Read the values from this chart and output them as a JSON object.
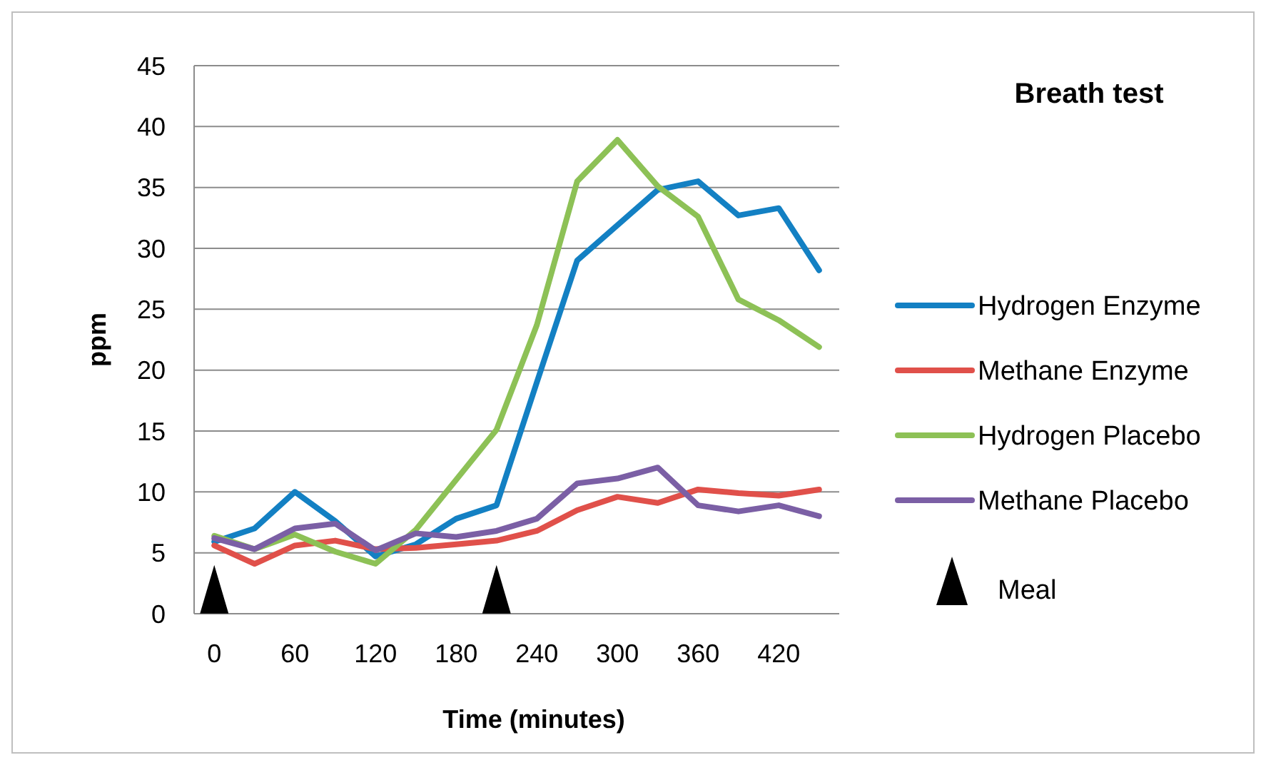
{
  "chart_data": {
    "type": "line",
    "title": "Breath test",
    "xlabel": "Time (minutes)",
    "ylabel": "ppm",
    "categories": [
      "0",
      null,
      "60",
      null,
      "120",
      null,
      "180",
      null,
      "240",
      null,
      "300",
      null,
      "360",
      null,
      "420",
      null
    ],
    "series": [
      {
        "name": "Hydrogen Enzyme",
        "color": "#1380c3",
        "values": [
          5.9,
          7.0,
          10.0,
          7.6,
          4.7,
          5.7,
          7.8,
          8.9,
          19,
          29.0,
          31.9,
          34.8,
          35.5,
          32.7,
          33.3,
          28.2
        ]
      },
      {
        "name": "Methane Enzyme",
        "color": "#e0504a",
        "values": [
          5.6,
          4.1,
          5.6,
          6.0,
          5.3,
          5.4,
          5.7,
          6.0,
          6.8,
          8.5,
          9.6,
          9.1,
          10.2,
          9.9,
          9.7,
          10.2
        ]
      },
      {
        "name": "Hydrogen Placebo",
        "color": "#8dc156",
        "values": [
          6.4,
          5.3,
          6.5,
          5.1,
          4.1,
          6.9,
          11.0,
          15.1,
          23.7,
          35.5,
          38.9,
          35.1,
          32.6,
          25.8,
          24.1,
          21.9
        ]
      },
      {
        "name": "Methane Placebo",
        "color": "#7b5fa5",
        "values": [
          6.2,
          5.3,
          7.0,
          7.4,
          5.2,
          6.6,
          6.3,
          6.8,
          7.8,
          10.7,
          11.1,
          12.0,
          8.9,
          8.4,
          8.9,
          8.0
        ]
      },
      {
        "name": "Meal",
        "type": "scatter",
        "marker": "triangle",
        "color": "#000000",
        "values": [
          2,
          null,
          null,
          null,
          null,
          null,
          null,
          2,
          null,
          null,
          null,
          null,
          null,
          null,
          null,
          null
        ]
      }
    ],
    "ylim": [
      0,
      45
    ],
    "yticks": [
      0,
      5,
      10,
      15,
      20,
      25,
      30,
      35,
      40,
      45
    ],
    "grid": "y",
    "legend": "right",
    "line_style": "solid",
    "marker": "none"
  }
}
